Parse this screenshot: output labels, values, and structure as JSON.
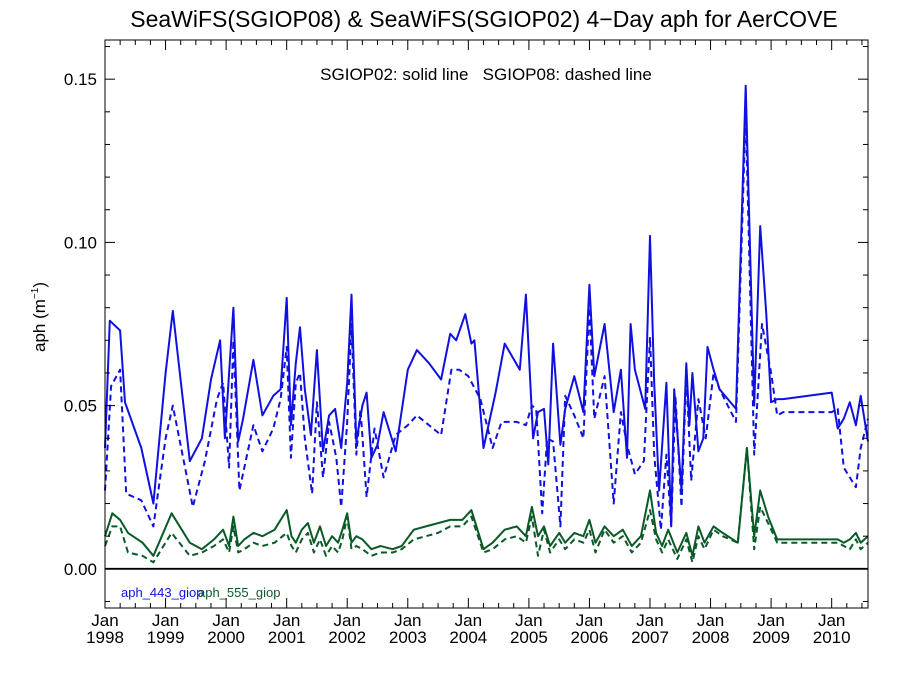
{
  "chart_data": {
    "type": "line",
    "title": "SeaWiFS(SGIOP08) & SeaWiFS(SGIOP02) 4−Day aph for AerCOVE",
    "annotation": "SGIOP02: solid line   SGIOP08: dashed line",
    "ylabel_main": "aph (m",
    "ylabel_sup": "−1",
    "ylabel_close": ")",
    "xlim": [
      1998.0,
      2010.6
    ],
    "ylim": [
      -0.012,
      0.162
    ],
    "yticks": [
      0.0,
      0.05,
      0.1,
      0.15
    ],
    "ytick_labels": [
      "0.00",
      "0.05",
      "0.10",
      "0.15"
    ],
    "xticks": [
      1998,
      1999,
      2000,
      2001,
      2002,
      2003,
      2004,
      2005,
      2006,
      2007,
      2008,
      2009,
      2010
    ],
    "xtick_month": "Jan",
    "xtick_years": [
      "1998",
      "1999",
      "2000",
      "2001",
      "2002",
      "2003",
      "2004",
      "2005",
      "2006",
      "2007",
      "2008",
      "2009",
      "2010"
    ],
    "legend": [
      {
        "label": "aph_443_giop",
        "color": "#1010e0"
      },
      {
        "label": "aph_555_giop",
        "color": "#0a5a28"
      }
    ],
    "series": [
      {
        "name": "aph_443_giop",
        "color": "#1010e0",
        "style": "solid",
        "x": [
          1998.0,
          1998.08,
          1998.25,
          1998.33,
          1998.6,
          1998.8,
          1999.0,
          1999.12,
          1999.4,
          1999.6,
          1999.75,
          1999.9,
          1999.98,
          2000.05,
          2000.12,
          2000.2,
          2000.28,
          2000.45,
          2000.6,
          2000.78,
          2000.9,
          2001.0,
          2001.07,
          2001.15,
          2001.22,
          2001.3,
          2001.4,
          2001.5,
          2001.6,
          2001.7,
          2001.8,
          2001.9,
          2002.0,
          2002.07,
          2002.15,
          2002.25,
          2002.32,
          2002.4,
          2002.5,
          2002.6,
          2002.8,
          2003.0,
          2003.15,
          2003.35,
          2003.55,
          2003.7,
          2003.8,
          2003.95,
          2004.05,
          2004.1,
          2004.25,
          2004.45,
          2004.6,
          2004.85,
          2004.95,
          2005.07,
          2005.15,
          2005.25,
          2005.32,
          2005.4,
          2005.52,
          2005.6,
          2005.75,
          2005.9,
          2006.0,
          2006.08,
          2006.25,
          2006.4,
          2006.52,
          2006.62,
          2006.68,
          2006.75,
          2006.92,
          2007.0,
          2007.07,
          2007.15,
          2007.27,
          2007.35,
          2007.4,
          2007.52,
          2007.6,
          2007.65,
          2007.7,
          2007.8,
          2007.88,
          2007.95,
          2008.05,
          2008.15,
          2008.42,
          2008.58,
          2008.72,
          2008.82,
          2008.92,
          2009.0,
          2009.1,
          2009.2,
          2010.0,
          2010.1,
          2010.2,
          2010.3,
          2010.4,
          2010.48,
          2010.6
        ],
        "y": [
          0.037,
          0.076,
          0.073,
          0.051,
          0.037,
          0.02,
          0.06,
          0.079,
          0.033,
          0.04,
          0.058,
          0.07,
          0.04,
          0.06,
          0.08,
          0.039,
          0.046,
          0.064,
          0.047,
          0.053,
          0.055,
          0.083,
          0.044,
          0.063,
          0.074,
          0.055,
          0.041,
          0.067,
          0.036,
          0.047,
          0.049,
          0.037,
          0.057,
          0.084,
          0.039,
          0.05,
          0.054,
          0.034,
          0.038,
          0.048,
          0.036,
          0.061,
          0.067,
          0.063,
          0.058,
          0.072,
          0.07,
          0.078,
          0.069,
          0.07,
          0.037,
          0.054,
          0.069,
          0.061,
          0.084,
          0.04,
          0.048,
          0.049,
          0.032,
          0.069,
          0.038,
          0.049,
          0.059,
          0.048,
          0.087,
          0.059,
          0.075,
          0.048,
          0.061,
          0.034,
          0.075,
          0.061,
          0.049,
          0.102,
          0.057,
          0.024,
          0.057,
          0.013,
          0.055,
          0.024,
          0.063,
          0.044,
          0.06,
          0.036,
          0.04,
          0.068,
          0.061,
          0.055,
          0.049,
          0.148,
          0.05,
          0.105,
          0.078,
          0.051,
          0.052,
          0.052,
          0.054,
          0.043,
          0.046,
          0.051,
          0.044,
          0.053,
          0.039
        ]
      },
      {
        "name": "aph_443_giop",
        "color": "#1010e0",
        "style": "dashed",
        "x": [
          1998.0,
          1998.1,
          1998.25,
          1998.35,
          1998.6,
          1998.8,
          1999.0,
          1999.12,
          1999.45,
          1999.65,
          1999.85,
          1999.95,
          2000.05,
          2000.12,
          2000.22,
          2000.45,
          2000.6,
          2000.78,
          2000.9,
          2001.0,
          2001.07,
          2001.15,
          2001.22,
          2001.3,
          2001.42,
          2001.5,
          2001.6,
          2001.7,
          2001.82,
          2001.9,
          2002.0,
          2002.07,
          2002.15,
          2002.22,
          2002.32,
          2002.45,
          2002.6,
          2002.8,
          2003.0,
          2003.15,
          2003.35,
          2003.55,
          2003.72,
          2003.85,
          2004.0,
          2004.2,
          2004.4,
          2004.55,
          2004.8,
          2004.95,
          2005.05,
          2005.12,
          2005.22,
          2005.3,
          2005.4,
          2005.52,
          2005.6,
          2005.75,
          2005.9,
          2006.0,
          2006.08,
          2006.25,
          2006.4,
          2006.52,
          2006.62,
          2006.75,
          2006.9,
          2007.0,
          2007.07,
          2007.18,
          2007.27,
          2007.35,
          2007.42,
          2007.52,
          2007.6,
          2007.68,
          2007.8,
          2007.92,
          2008.05,
          2008.15,
          2008.42,
          2008.58,
          2008.72,
          2008.85,
          2009.0,
          2009.1,
          2009.2,
          2010.0,
          2010.1,
          2010.2,
          2010.3,
          2010.4,
          2010.48,
          2010.6
        ],
        "y": [
          0.024,
          0.056,
          0.061,
          0.023,
          0.021,
          0.013,
          0.04,
          0.05,
          0.019,
          0.033,
          0.052,
          0.057,
          0.031,
          0.07,
          0.024,
          0.044,
          0.036,
          0.043,
          0.052,
          0.068,
          0.034,
          0.057,
          0.06,
          0.04,
          0.023,
          0.051,
          0.028,
          0.045,
          0.034,
          0.019,
          0.045,
          0.075,
          0.035,
          0.049,
          0.022,
          0.043,
          0.028,
          0.041,
          0.044,
          0.047,
          0.044,
          0.041,
          0.061,
          0.061,
          0.059,
          0.052,
          0.037,
          0.045,
          0.045,
          0.044,
          0.05,
          0.049,
          0.017,
          0.04,
          0.039,
          0.013,
          0.053,
          0.047,
          0.04,
          0.08,
          0.046,
          0.059,
          0.02,
          0.048,
          0.038,
          0.029,
          0.033,
          0.071,
          0.035,
          0.012,
          0.035,
          0.013,
          0.053,
          0.019,
          0.06,
          0.027,
          0.052,
          0.04,
          0.06,
          0.055,
          0.045,
          0.14,
          0.035,
          0.075,
          0.06,
          0.047,
          0.048,
          0.048,
          0.049,
          0.031,
          0.028,
          0.025,
          0.037,
          0.046
        ]
      },
      {
        "name": "aph_555_giop",
        "color": "#0a5a28",
        "style": "solid",
        "x": [
          1998.0,
          1998.12,
          1998.25,
          1998.38,
          1998.62,
          1998.8,
          1999.1,
          1999.4,
          1999.6,
          1999.8,
          1999.95,
          2000.05,
          2000.12,
          2000.2,
          2000.3,
          2000.45,
          2000.6,
          2000.8,
          2001.0,
          2001.08,
          2001.15,
          2001.25,
          2001.35,
          2001.45,
          2001.55,
          2001.65,
          2001.75,
          2001.85,
          2001.92,
          2002.0,
          2002.07,
          2002.15,
          2002.25,
          2002.4,
          2002.55,
          2002.75,
          2002.9,
          2003.1,
          2003.3,
          2003.5,
          2003.7,
          2003.9,
          2004.05,
          2004.25,
          2004.4,
          2004.6,
          2004.8,
          2004.95,
          2005.05,
          2005.15,
          2005.25,
          2005.35,
          2005.5,
          2005.6,
          2005.75,
          2005.9,
          2006.0,
          2006.1,
          2006.25,
          2006.4,
          2006.55,
          2006.7,
          2006.85,
          2007.0,
          2007.1,
          2007.2,
          2007.3,
          2007.45,
          2007.6,
          2007.7,
          2007.8,
          2007.9,
          2008.05,
          2008.2,
          2008.45,
          2008.6,
          2008.72,
          2008.82,
          2008.95,
          2009.1,
          2009.2,
          2010.0,
          2010.1,
          2010.2,
          2010.3,
          2010.4,
          2010.48,
          2010.6
        ],
        "y": [
          0.01,
          0.017,
          0.015,
          0.011,
          0.008,
          0.004,
          0.017,
          0.008,
          0.006,
          0.009,
          0.012,
          0.007,
          0.016,
          0.007,
          0.009,
          0.011,
          0.01,
          0.012,
          0.018,
          0.01,
          0.008,
          0.012,
          0.014,
          0.008,
          0.013,
          0.007,
          0.01,
          0.008,
          0.012,
          0.017,
          0.008,
          0.01,
          0.009,
          0.006,
          0.007,
          0.006,
          0.007,
          0.012,
          0.013,
          0.014,
          0.015,
          0.015,
          0.018,
          0.006,
          0.008,
          0.012,
          0.013,
          0.01,
          0.019,
          0.01,
          0.013,
          0.007,
          0.011,
          0.008,
          0.011,
          0.01,
          0.015,
          0.008,
          0.013,
          0.01,
          0.012,
          0.007,
          0.01,
          0.024,
          0.011,
          0.007,
          0.012,
          0.005,
          0.011,
          0.004,
          0.013,
          0.008,
          0.013,
          0.011,
          0.008,
          0.037,
          0.01,
          0.024,
          0.016,
          0.009,
          0.009,
          0.009,
          0.009,
          0.008,
          0.009,
          0.011,
          0.008,
          0.01
        ]
      },
      {
        "name": "aph_555_giop",
        "color": "#0a5a28",
        "style": "dashed",
        "x": [
          1998.0,
          1998.12,
          1998.25,
          1998.38,
          1998.62,
          1998.8,
          1999.1,
          1999.4,
          1999.6,
          1999.8,
          1999.95,
          2000.05,
          2000.12,
          2000.2,
          2000.3,
          2000.45,
          2000.6,
          2000.8,
          2001.0,
          2001.08,
          2001.15,
          2001.25,
          2001.35,
          2001.45,
          2001.55,
          2001.65,
          2001.75,
          2001.85,
          2001.92,
          2002.0,
          2002.07,
          2002.15,
          2002.25,
          2002.4,
          2002.55,
          2002.75,
          2002.9,
          2003.1,
          2003.3,
          2003.5,
          2003.7,
          2003.9,
          2004.05,
          2004.25,
          2004.4,
          2004.6,
          2004.8,
          2004.95,
          2005.05,
          2005.15,
          2005.25,
          2005.35,
          2005.5,
          2005.6,
          2005.75,
          2005.9,
          2006.0,
          2006.1,
          2006.25,
          2006.4,
          2006.55,
          2006.7,
          2006.85,
          2007.0,
          2007.1,
          2007.2,
          2007.3,
          2007.45,
          2007.6,
          2007.7,
          2007.8,
          2007.9,
          2008.05,
          2008.2,
          2008.45,
          2008.6,
          2008.72,
          2008.82,
          2008.95,
          2009.1,
          2009.2,
          2010.0,
          2010.1,
          2010.2,
          2010.3,
          2010.4,
          2010.48,
          2010.6
        ],
        "y": [
          0.007,
          0.013,
          0.013,
          0.005,
          0.004,
          0.002,
          0.011,
          0.004,
          0.005,
          0.007,
          0.009,
          0.005,
          0.013,
          0.005,
          0.006,
          0.008,
          0.007,
          0.008,
          0.011,
          0.007,
          0.005,
          0.009,
          0.011,
          0.005,
          0.009,
          0.004,
          0.007,
          0.005,
          0.009,
          0.016,
          0.006,
          0.007,
          0.006,
          0.004,
          0.005,
          0.005,
          0.006,
          0.009,
          0.01,
          0.011,
          0.013,
          0.013,
          0.016,
          0.005,
          0.006,
          0.009,
          0.01,
          0.008,
          0.016,
          0.004,
          0.012,
          0.005,
          0.009,
          0.006,
          0.009,
          0.008,
          0.012,
          0.005,
          0.012,
          0.008,
          0.01,
          0.005,
          0.008,
          0.018,
          0.009,
          0.005,
          0.009,
          0.003,
          0.009,
          0.002,
          0.01,
          0.006,
          0.012,
          0.01,
          0.008,
          0.037,
          0.006,
          0.019,
          0.014,
          0.008,
          0.008,
          0.008,
          0.008,
          0.007,
          0.006,
          0.009,
          0.006,
          0.008
        ]
      }
    ]
  }
}
